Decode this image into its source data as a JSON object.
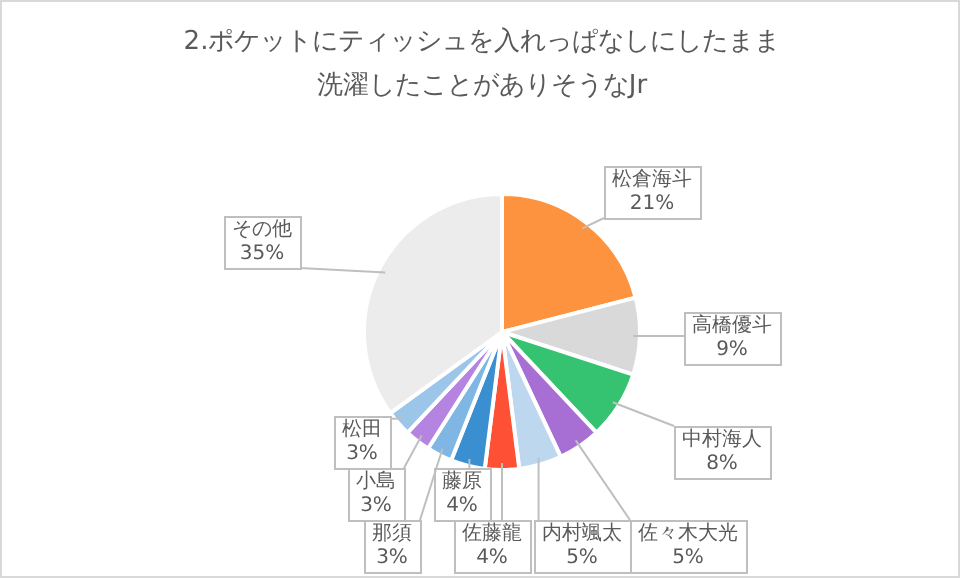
{
  "chart_data": {
    "type": "pie",
    "title": "2.ポケットにティッシュを入れっぱなしにしたまま洗濯したことがありそうなJr",
    "categories": [
      "松倉海斗",
      "高橋優斗",
      "中村海人",
      "佐々木大光",
      "内村颯太",
      "佐藤龍",
      "藤原",
      "那須",
      "小島",
      "松田",
      "その他"
    ],
    "values": [
      21,
      9,
      8,
      5,
      5,
      4,
      4,
      3,
      3,
      3,
      35
    ],
    "value_labels": [
      "21%",
      "9%",
      "8%",
      "5%",
      "5%",
      "4%",
      "4%",
      "3%",
      "3%",
      "3%",
      "35%"
    ],
    "colors": [
      "#fd923f",
      "#d9d9d9",
      "#35c271",
      "#a76fd4",
      "#bdd7ee",
      "#fd5035",
      "#3a8fd0",
      "#7fb6e3",
      "#b484e0",
      "#9cc5ea",
      "#ececec"
    ],
    "legend": false
  }
}
